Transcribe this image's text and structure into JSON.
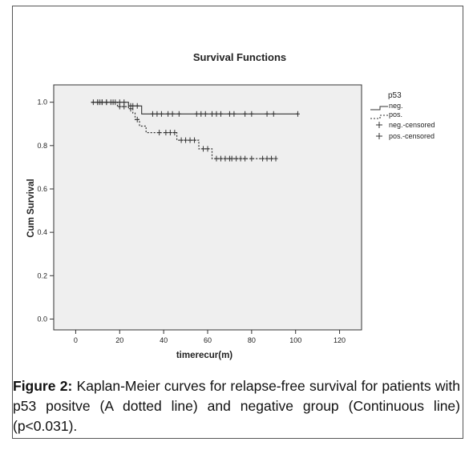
{
  "chart_data": {
    "type": "line",
    "title": "Survival Functions",
    "xlabel": "timerecur(m)",
    "ylabel": "Cum Survival",
    "xlim": [
      -10,
      130
    ],
    "ylim": [
      -0.05,
      1.08
    ],
    "x_ticks": [
      0,
      20,
      40,
      60,
      80,
      100,
      120
    ],
    "y_ticks": [
      0.0,
      0.2,
      0.4,
      0.6,
      0.8,
      1.0
    ],
    "x_tick_labels": [
      "0",
      "20",
      "40",
      "60",
      "80",
      "100",
      "120"
    ],
    "y_tick_labels": [
      "0.0",
      "0.2",
      "0.4",
      "0.6",
      "0.8",
      "1.0"
    ],
    "legend": {
      "title": "p53",
      "placement": "right",
      "entries": [
        "neg.",
        "pos.",
        "neg.-censored",
        "pos.-censored"
      ]
    },
    "series": [
      {
        "name": "neg.",
        "style": "solid",
        "steps": [
          [
            7,
            1.0
          ],
          [
            24,
            1.0
          ],
          [
            24,
            0.983
          ],
          [
            30,
            0.983
          ],
          [
            30,
            0.946
          ],
          [
            101,
            0.946
          ]
        ],
        "censored": [
          [
            8,
            1.0
          ],
          [
            10,
            1.0
          ],
          [
            11,
            1.0
          ],
          [
            12,
            1.0
          ],
          [
            14,
            1.0
          ],
          [
            16,
            1.0
          ],
          [
            18,
            1.0
          ],
          [
            20,
            1.0
          ],
          [
            22,
            1.0
          ],
          [
            25,
            0.983
          ],
          [
            26,
            0.983
          ],
          [
            28,
            0.983
          ],
          [
            35,
            0.946
          ],
          [
            37,
            0.946
          ],
          [
            39,
            0.946
          ],
          [
            42,
            0.946
          ],
          [
            44,
            0.946
          ],
          [
            47,
            0.946
          ],
          [
            55,
            0.946
          ],
          [
            57,
            0.946
          ],
          [
            59,
            0.946
          ],
          [
            62,
            0.946
          ],
          [
            64,
            0.946
          ],
          [
            66,
            0.946
          ],
          [
            70,
            0.946
          ],
          [
            72,
            0.946
          ],
          [
            77,
            0.946
          ],
          [
            80,
            0.946
          ],
          [
            87,
            0.946
          ],
          [
            90,
            0.946
          ],
          [
            101,
            0.946
          ]
        ]
      },
      {
        "name": "pos.",
        "style": "dotted",
        "steps": [
          [
            7,
            1.0
          ],
          [
            19,
            1.0
          ],
          [
            19,
            0.98
          ],
          [
            24,
            0.98
          ],
          [
            24,
            0.97
          ],
          [
            26,
            0.97
          ],
          [
            26,
            0.95
          ],
          [
            27,
            0.95
          ],
          [
            27,
            0.92
          ],
          [
            29,
            0.92
          ],
          [
            29,
            0.89
          ],
          [
            32,
            0.89
          ],
          [
            32,
            0.86
          ],
          [
            46,
            0.86
          ],
          [
            46,
            0.825
          ],
          [
            56,
            0.825
          ],
          [
            56,
            0.785
          ],
          [
            62,
            0.785
          ],
          [
            62,
            0.74
          ],
          [
            91,
            0.74
          ]
        ],
        "censored": [
          [
            10,
            1.0
          ],
          [
            12,
            1.0
          ],
          [
            14,
            1.0
          ],
          [
            17,
            1.0
          ],
          [
            20,
            0.98
          ],
          [
            22,
            0.98
          ],
          [
            25,
            0.97
          ],
          [
            28,
            0.92
          ],
          [
            38,
            0.86
          ],
          [
            41,
            0.86
          ],
          [
            43,
            0.86
          ],
          [
            45,
            0.86
          ],
          [
            48,
            0.825
          ],
          [
            50,
            0.825
          ],
          [
            52,
            0.825
          ],
          [
            54,
            0.825
          ],
          [
            58,
            0.785
          ],
          [
            60,
            0.785
          ],
          [
            64,
            0.74
          ],
          [
            66,
            0.74
          ],
          [
            68,
            0.74
          ],
          [
            70,
            0.74
          ],
          [
            71,
            0.74
          ],
          [
            73,
            0.74
          ],
          [
            75,
            0.74
          ],
          [
            77,
            0.74
          ],
          [
            80,
            0.74
          ],
          [
            85,
            0.74
          ],
          [
            87,
            0.74
          ],
          [
            89,
            0.74
          ],
          [
            91,
            0.74
          ]
        ]
      }
    ]
  },
  "caption": {
    "label": "Figure 2:",
    "text": " Kaplan-Meier curves for relapse-free survival for patients with p53 positve (A dotted line) and negative group (Continuous line) (p<0.031)."
  }
}
